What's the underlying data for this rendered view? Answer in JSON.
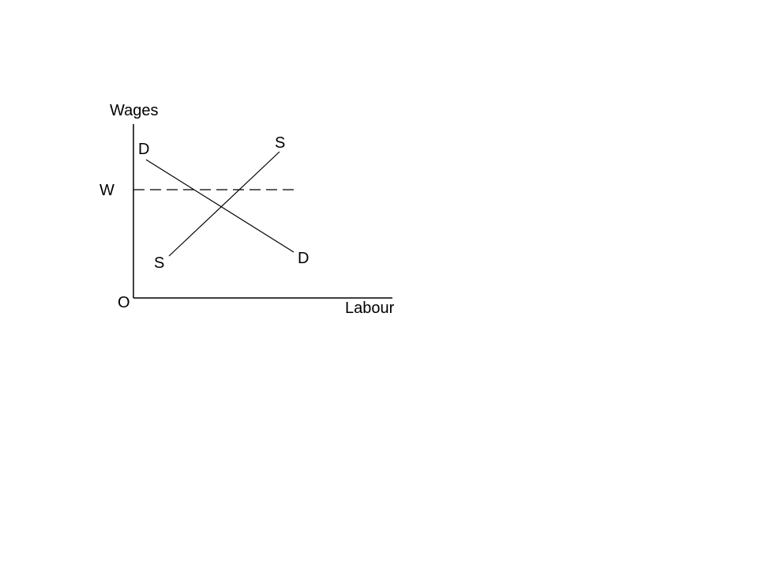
{
  "diagram": {
    "y_axis_label": "Wages",
    "x_axis_label": "Labour",
    "origin_label": "O",
    "wage_level_label": "W",
    "demand_curve": {
      "label_start": "D",
      "label_end": "D"
    },
    "supply_curve": {
      "label_start": "S",
      "label_end": "S"
    },
    "colors": {
      "line": "#000000",
      "background": "#ffffff"
    }
  }
}
